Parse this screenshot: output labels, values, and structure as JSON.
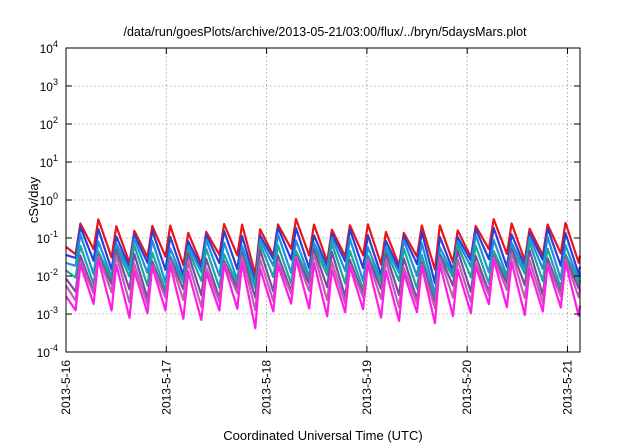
{
  "chart_data": {
    "type": "line",
    "title": "/data/run/goesPlots/archive/2013-05-21/03:00/flux/../bryn/5daysMars.plot",
    "xlabel": "Coordinated Universal Time (UTC)",
    "ylabel": "cSv/day",
    "yscale": "log",
    "ylim": [
      0.0001,
      10000
    ],
    "xlim": [
      "2013-05-16",
      "2013-05-21 03:00"
    ],
    "x_ticks": [
      "2013-5-16",
      "2013-5-17",
      "2013-5-18",
      "2013-5-19",
      "2013-5-20",
      "2013-5-21"
    ],
    "y_ticks": [
      {
        "base": "10",
        "exp": "4"
      },
      {
        "base": "10",
        "exp": "3"
      },
      {
        "base": "10",
        "exp": "2"
      },
      {
        "base": "10",
        "exp": "1"
      },
      {
        "base": "10",
        "exp": "0"
      },
      {
        "base": "10",
        "exp": "-1"
      },
      {
        "base": "10",
        "exp": "-2"
      },
      {
        "base": "10",
        "exp": "-3"
      },
      {
        "base": "10",
        "exp": "-4"
      }
    ],
    "grid": true,
    "legend": "none",
    "sawtooth_period_hours": 4.3,
    "series": [
      {
        "color": "#e8141a",
        "peak": 0.2,
        "trough": 0.03
      },
      {
        "color": "#2b3fd6",
        "peak": 0.13,
        "trough": 0.018
      },
      {
        "color": "#1e8fe0",
        "peak": 0.08,
        "trough": 0.011
      },
      {
        "color": "#19a89a",
        "peak": 0.05,
        "trough": 0.007
      },
      {
        "color": "#7a4aa8",
        "peak": 0.035,
        "trough": 0.004
      },
      {
        "color": "#c05fb0",
        "peak": 0.025,
        "trough": 0.0025
      },
      {
        "color": "#ff1de6",
        "peak": 0.018,
        "trough": 0.0011
      }
    ]
  }
}
